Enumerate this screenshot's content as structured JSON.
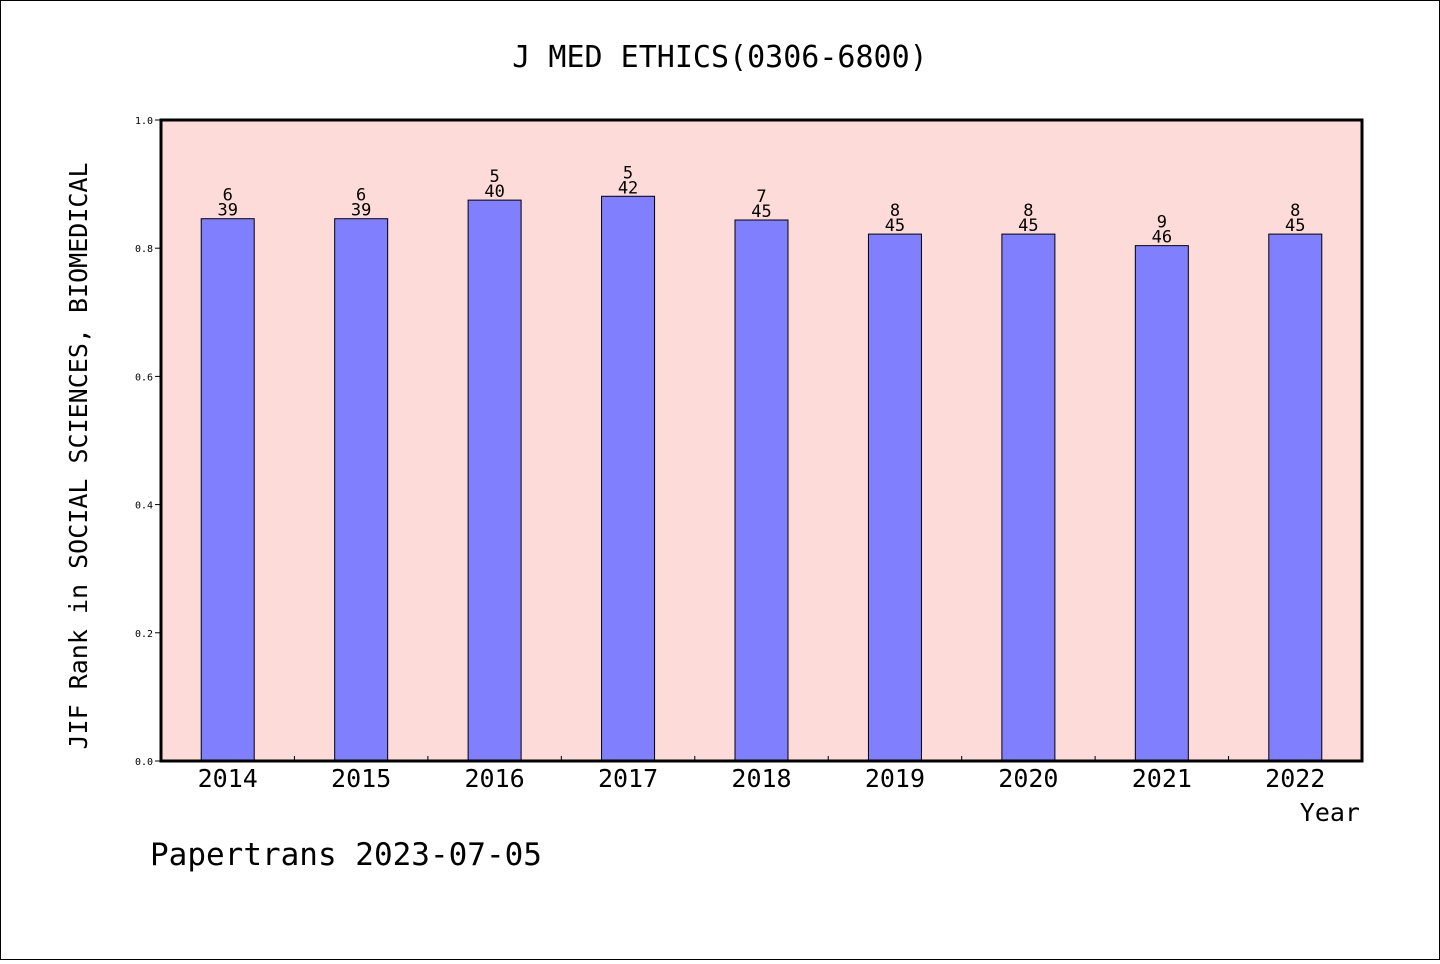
{
  "chart_data": {
    "type": "bar",
    "title": "J MED ETHICS(0306-6800)",
    "xlabel": "Year",
    "ylabel": "JIF Rank in SOCIAL SCIENCES, BIOMEDICAL",
    "categories": [
      "2014",
      "2015",
      "2016",
      "2017",
      "2018",
      "2019",
      "2020",
      "2021",
      "2022"
    ],
    "values": [
      0.846,
      0.846,
      0.875,
      0.881,
      0.844,
      0.822,
      0.822,
      0.804,
      0.822
    ],
    "rank": [
      "6",
      "6",
      "5",
      "5",
      "7",
      "8",
      "8",
      "9",
      "8"
    ],
    "total": [
      "39",
      "39",
      "40",
      "42",
      "45",
      "45",
      "45",
      "46",
      "45"
    ],
    "ylim": [
      0,
      1.0
    ],
    "yticks": [
      "0.0",
      "0.2",
      "0.4",
      "0.6",
      "0.8",
      "1.0"
    ],
    "grid": false,
    "colors": {
      "plot_bg": "#fddbd8",
      "bar": "#8080ff",
      "bar_edge": "#000000"
    }
  },
  "footer": "Papertrans 2023-07-05"
}
